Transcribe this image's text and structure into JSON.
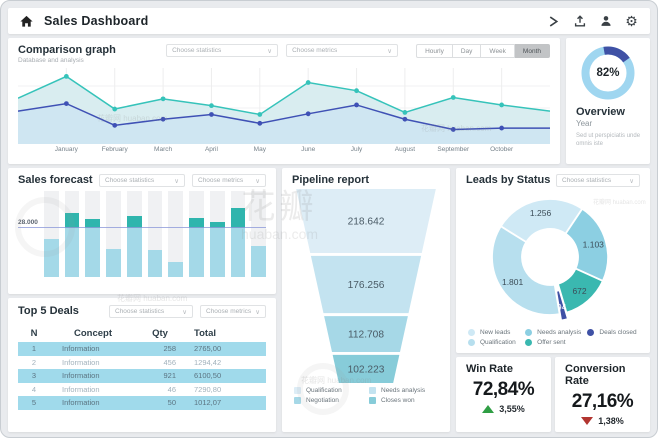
{
  "app": {
    "title": "Sales Dashboard"
  },
  "watermark": {
    "brand": "花瓣",
    "site": "huaban.com",
    "small": "花瓣网 huaban.com"
  },
  "comparison": {
    "title": "Comparison graph",
    "subtitle": "Database and analysis",
    "dropdown_statistics": "Choose statistics",
    "dropdown_metrics": "Choose metrics",
    "range_buttons": [
      "Hourly",
      "Day",
      "Week",
      "Month"
    ],
    "active_range": "Month"
  },
  "overview": {
    "percent": "82%",
    "title": "Overview",
    "subtitle": "Year",
    "description": "Sed ut perspiciatis unde omnis iste"
  },
  "forecast": {
    "title": "Sales forecast",
    "dropdown_statistics": "Choose statistics",
    "dropdown_metrics": "Choose metrics",
    "threshold_label": "28.000"
  },
  "pipeline": {
    "title": "Pipeline report"
  },
  "leads": {
    "title": "Leads by Status",
    "dropdown_statistics": "Choose statistics"
  },
  "deals": {
    "title": "Top 5 Deals",
    "dropdown_statistics": "Choose statistics",
    "dropdown_metrics": "Choose metrics",
    "columns": [
      "N",
      "Concept",
      "Qty",
      "Total"
    ],
    "rows": [
      [
        "1",
        "Information",
        "258",
        "2765,00"
      ],
      [
        "2",
        "Information",
        "456",
        "1294,42"
      ],
      [
        "3",
        "Information",
        "921",
        "6100,50"
      ],
      [
        "4",
        "Information",
        "46",
        "7290,80"
      ],
      [
        "5",
        "Information",
        "50",
        "1012,07"
      ]
    ]
  },
  "win_rate": {
    "title": "Win Rate",
    "value": "72,84%",
    "delta": "3,55%",
    "direction": "up"
  },
  "conversion_rate": {
    "title": "Conversion Rate",
    "value": "27,16%",
    "delta": "1,38%",
    "direction": "down"
  },
  "chart_data": [
    {
      "id": "comparison",
      "type": "line",
      "title": "Comparison graph",
      "categories": [
        "January",
        "February",
        "March",
        "April",
        "May",
        "June",
        "July",
        "August",
        "September",
        "October"
      ],
      "series": [
        {
          "name": "series-teal",
          "color": "#36c3ba",
          "area": "#d9edf0",
          "values": [
            63,
            95,
            47,
            62,
            52,
            39,
            86,
            74,
            42,
            64,
            53,
            44
          ]
        },
        {
          "name": "series-indigo",
          "color": "#3f51b5",
          "area": "#cfe6f2",
          "values": [
            44,
            55,
            23,
            32,
            39,
            26,
            40,
            53,
            32,
            17,
            19,
            19
          ]
        }
      ],
      "note": "first/last values are edge points; middle 10 align with categories",
      "ylim": [
        0,
        100
      ],
      "grid": true,
      "legend_position": "none"
    },
    {
      "id": "overview-donut",
      "type": "donut",
      "center_label": "82%",
      "slices": [
        {
          "name": "complete",
          "value": 82,
          "color": "#9fd6f0"
        },
        {
          "name": "remainder",
          "value": 18,
          "color": "#3f51a5"
        }
      ],
      "accent_arc": {
        "start_deg": -10,
        "end_deg": 55
      }
    },
    {
      "id": "forecast",
      "type": "bar",
      "values": [
        44,
        74,
        68,
        33,
        71,
        31,
        18,
        69,
        64,
        80,
        36
      ],
      "threshold": 57,
      "threshold_label": "28.000",
      "bar_color": "#a4d9e8",
      "cap_color": "#2fb5ad",
      "track_color": "#f0f1f3",
      "ylim": [
        0,
        100
      ]
    },
    {
      "id": "pipeline",
      "type": "funnel",
      "stages": [
        {
          "label": "Qualification",
          "value": "218.642",
          "color": "#ddedf6"
        },
        {
          "label": "Needs analysis",
          "value": "176.256",
          "color": "#c3e3f0"
        },
        {
          "label": "Negotiation",
          "value": "112.708",
          "color": "#a6d8e7"
        },
        {
          "label": "Closes won",
          "value": "102.223",
          "color": "#87ccd9"
        }
      ],
      "legend_order": [
        "Qualification",
        "Needs analysis",
        "Negotiation",
        "Closes won"
      ]
    },
    {
      "id": "leads",
      "type": "donut",
      "start_deg": -58,
      "segments": [
        {
          "label": "New leads",
          "value": 1256,
          "display": "1.256",
          "color": "#cfe9f5"
        },
        {
          "label": "Needs analysis",
          "value": 1103,
          "display": "1.103",
          "color": "#8ccfe2"
        },
        {
          "label": "Offer sent",
          "value": 672,
          "display": "672",
          "color": "#3ab8b0"
        },
        {
          "label": "Deals closed",
          "value": 94,
          "display": "94",
          "color": "#3f51a5",
          "exploded": true
        },
        {
          "label": "Qualification",
          "value": 1801,
          "display": "1.801",
          "color": "#b7dfee"
        }
      ],
      "legend": [
        {
          "label": "New leads",
          "color": "#cfe9f5"
        },
        {
          "label": "Needs analysis",
          "color": "#8ccfe2"
        },
        {
          "label": "Deals closed",
          "color": "#3f51a5"
        },
        {
          "label": "Qualification",
          "color": "#b7dfee"
        },
        {
          "label": "Offer sent",
          "color": "#3ab8b0"
        }
      ]
    }
  ]
}
